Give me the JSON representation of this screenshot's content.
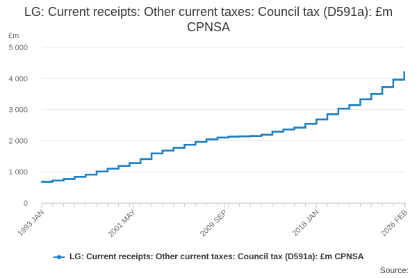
{
  "chart_data": {
    "type": "line",
    "title": "LG: Current receipts: Other current taxes: Council tax (D591a): £m CPNSA",
    "ylabel": "£m",
    "xlabel": "",
    "ylim": [
      0,
      5000
    ],
    "yticks": [
      0,
      1000,
      2000,
      3000,
      4000,
      5000
    ],
    "ytick_labels": [
      "0",
      "1 000",
      "2 000",
      "3 000",
      "4 000",
      "5 000"
    ],
    "xtick_labels": [
      "1993 JAN",
      "2001 MAY",
      "2009 SEP",
      "2018 JAN",
      "2026 FEB"
    ],
    "grid": true,
    "legend_position": "bottom",
    "series": [
      {
        "name": "LG: Current receipts: Other current taxes: Council tax (D591a): £m CPNSA",
        "color": "#1a7ebf",
        "annual_steps": [
          {
            "year": 1993,
            "value": 680
          },
          {
            "year": 1994,
            "value": 720
          },
          {
            "year": 1995,
            "value": 770
          },
          {
            "year": 1996,
            "value": 840
          },
          {
            "year": 1997,
            "value": 910
          },
          {
            "year": 1998,
            "value": 1010
          },
          {
            "year": 1999,
            "value": 1100
          },
          {
            "year": 2000,
            "value": 1190
          },
          {
            "year": 2001,
            "value": 1280
          },
          {
            "year": 2002,
            "value": 1410
          },
          {
            "year": 2003,
            "value": 1590
          },
          {
            "year": 2004,
            "value": 1680
          },
          {
            "year": 2005,
            "value": 1770
          },
          {
            "year": 2006,
            "value": 1870
          },
          {
            "year": 2007,
            "value": 1960
          },
          {
            "year": 2008,
            "value": 2040
          },
          {
            "year": 2009,
            "value": 2100
          },
          {
            "year": 2010,
            "value": 2130
          },
          {
            "year": 2011,
            "value": 2140
          },
          {
            "year": 2012,
            "value": 2150
          },
          {
            "year": 2013,
            "value": 2190
          },
          {
            "year": 2014,
            "value": 2290
          },
          {
            "year": 2015,
            "value": 2360
          },
          {
            "year": 2016,
            "value": 2420
          },
          {
            "year": 2017,
            "value": 2540
          },
          {
            "year": 2018,
            "value": 2680
          },
          {
            "year": 2019,
            "value": 2850
          },
          {
            "year": 2020,
            "value": 3030
          },
          {
            "year": 2021,
            "value": 3140
          },
          {
            "year": 2022,
            "value": 3330
          },
          {
            "year": 2023,
            "value": 3500
          },
          {
            "year": 2024,
            "value": 3720
          },
          {
            "year": 2025,
            "value": 3960
          },
          {
            "year": 2026,
            "value": 4200
          }
        ],
        "end": "2026 FEB"
      }
    ]
  },
  "legend": {
    "label": "LG: Current receipts: Other current taxes: Council tax (D591a): £m CPNSA"
  },
  "source_label": "Source:"
}
